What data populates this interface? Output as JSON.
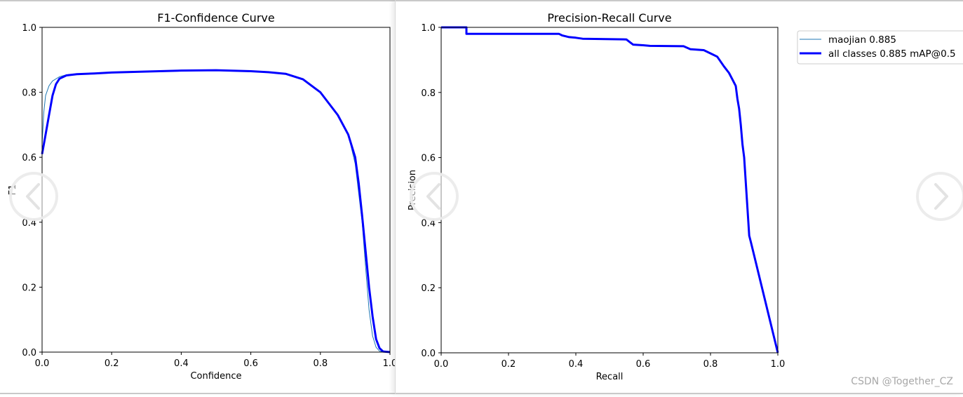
{
  "chart_data": [
    {
      "type": "line",
      "title": "F1-Confidence Curve",
      "xlabel": "Confidence",
      "ylabel": "F1",
      "xlim": [
        0,
        1
      ],
      "ylim": [
        0,
        1
      ],
      "xticks": [
        "0.0",
        "0.2",
        "0.4",
        "0.6",
        "0.8",
        "1.0"
      ],
      "yticks": [
        "0.0",
        "0.2",
        "0.4",
        "0.6",
        "0.8",
        "1.0"
      ],
      "grid": false,
      "series": [
        {
          "name": "maojian",
          "color": "#1f77b4",
          "x": [
            0.0,
            0.005,
            0.01,
            0.02,
            0.03,
            0.05,
            0.07,
            0.1,
            0.15,
            0.2,
            0.3,
            0.4,
            0.5,
            0.6,
            0.65,
            0.7,
            0.75,
            0.8,
            0.85,
            0.88,
            0.9,
            0.92,
            0.93,
            0.94,
            0.95,
            0.96,
            0.97,
            0.985,
            1.0
          ],
          "y": [
            0.64,
            0.74,
            0.79,
            0.82,
            0.835,
            0.848,
            0.854,
            0.857,
            0.858,
            0.861,
            0.864,
            0.867,
            0.868,
            0.865,
            0.862,
            0.857,
            0.84,
            0.8,
            0.73,
            0.67,
            0.58,
            0.4,
            0.26,
            0.13,
            0.05,
            0.015,
            0.003,
            0.0,
            0.0
          ]
        },
        {
          "name": "all classes",
          "color": "#0000ff",
          "x": [
            0.0,
            0.005,
            0.01,
            0.02,
            0.03,
            0.04,
            0.05,
            0.07,
            0.1,
            0.15,
            0.2,
            0.3,
            0.4,
            0.5,
            0.6,
            0.65,
            0.7,
            0.75,
            0.8,
            0.85,
            0.88,
            0.9,
            0.91,
            0.92,
            0.93,
            0.94,
            0.95,
            0.96,
            0.97,
            0.98,
            1.0
          ],
          "y": [
            0.61,
            0.64,
            0.67,
            0.73,
            0.79,
            0.825,
            0.842,
            0.852,
            0.856,
            0.858,
            0.861,
            0.864,
            0.867,
            0.868,
            0.865,
            0.862,
            0.857,
            0.84,
            0.8,
            0.73,
            0.67,
            0.6,
            0.52,
            0.42,
            0.31,
            0.2,
            0.11,
            0.04,
            0.012,
            0.002,
            0.0
          ]
        }
      ]
    },
    {
      "type": "line",
      "title": "Precision-Recall Curve",
      "xlabel": "Recall",
      "ylabel": "Precision",
      "xlim": [
        0,
        1
      ],
      "ylim": [
        0,
        1
      ],
      "xticks": [
        "0.0",
        "0.2",
        "0.4",
        "0.6",
        "0.8",
        "1.0"
      ],
      "yticks": [
        "0.0",
        "0.2",
        "0.4",
        "0.6",
        "0.8",
        "1.0"
      ],
      "grid": false,
      "legend_placement": "outside upper right",
      "series": [
        {
          "name": "maojian 0.885",
          "color": "#1f77b4",
          "x": [
            0.0,
            0.075,
            0.075,
            0.35,
            0.36,
            0.38,
            0.4,
            0.42,
            0.55,
            0.56,
            0.57,
            0.6,
            0.62,
            0.72,
            0.74,
            0.78,
            0.8,
            0.82,
            0.84,
            0.855,
            0.865,
            0.875,
            0.88,
            0.885,
            0.89,
            0.895,
            0.9,
            0.905,
            0.91,
            0.915,
            0.92,
            1.0
          ],
          "y": [
            1.0,
            1.0,
            0.98,
            0.98,
            0.975,
            0.97,
            0.968,
            0.965,
            0.963,
            0.955,
            0.947,
            0.945,
            0.943,
            0.942,
            0.933,
            0.93,
            0.92,
            0.91,
            0.88,
            0.86,
            0.84,
            0.82,
            0.78,
            0.75,
            0.7,
            0.64,
            0.6,
            0.52,
            0.44,
            0.36,
            0.34,
            0.0
          ]
        },
        {
          "name": "all classes 0.885 mAP@0.5",
          "color": "#0000ff",
          "x": [
            0.0,
            0.075,
            0.075,
            0.35,
            0.36,
            0.38,
            0.4,
            0.42,
            0.55,
            0.56,
            0.57,
            0.6,
            0.62,
            0.72,
            0.74,
            0.78,
            0.8,
            0.82,
            0.84,
            0.855,
            0.865,
            0.875,
            0.88,
            0.885,
            0.89,
            0.895,
            0.9,
            0.905,
            0.91,
            0.915,
            0.92,
            1.0
          ],
          "y": [
            1.0,
            1.0,
            0.98,
            0.98,
            0.975,
            0.97,
            0.968,
            0.965,
            0.963,
            0.955,
            0.947,
            0.945,
            0.943,
            0.942,
            0.933,
            0.93,
            0.92,
            0.91,
            0.88,
            0.86,
            0.84,
            0.82,
            0.78,
            0.75,
            0.7,
            0.64,
            0.6,
            0.52,
            0.44,
            0.36,
            0.34,
            0.0
          ]
        }
      ]
    }
  ],
  "watermark": "CSDN @Together_CZ",
  "icons": {
    "prev": "chevron-left-icon",
    "next": "chevron-right-icon"
  }
}
